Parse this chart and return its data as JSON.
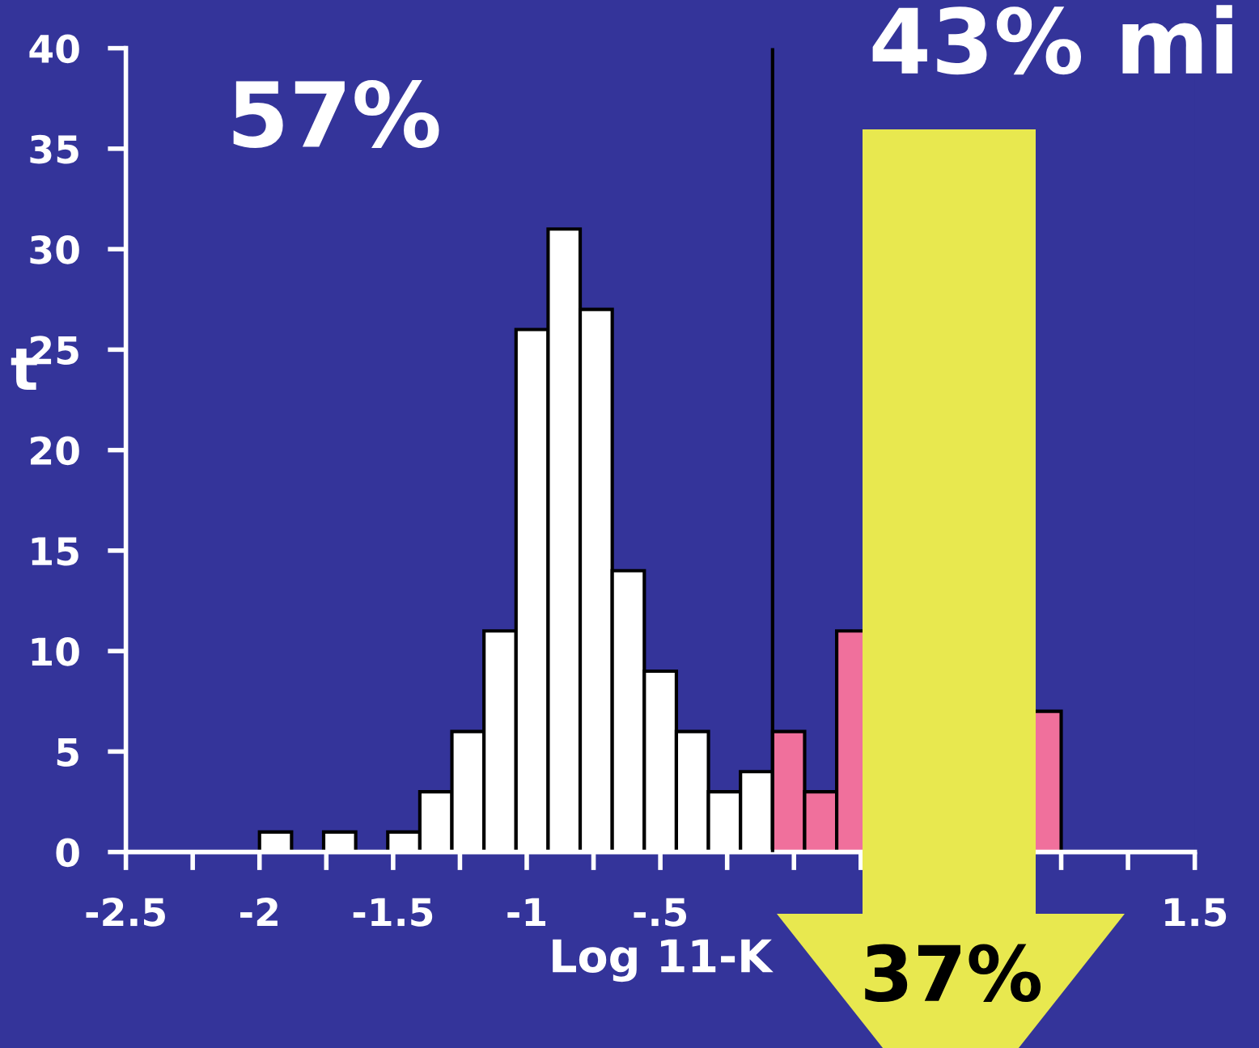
{
  "chart_data": {
    "type": "histogram",
    "xlabel": "Log 11-K",
    "ylabel": "t",
    "bins": [
      -2.0,
      -1.88,
      -1.76,
      -1.64,
      -1.52,
      -1.4,
      -1.28,
      -1.16,
      -1.04,
      -0.92,
      -0.8,
      -0.68,
      -0.56,
      -0.44,
      -0.32,
      -0.2,
      -0.08,
      0.04,
      0.16,
      0.28,
      0.4,
      0.52,
      0.64,
      0.76,
      0.88,
      1.0
    ],
    "values": [
      1,
      0,
      1,
      0,
      1,
      3,
      6,
      11,
      26,
      31,
      27,
      14,
      9,
      6,
      3,
      4,
      6,
      3,
      11,
      null,
      null,
      null,
      null,
      null,
      7
    ],
    "colors": [
      "#ffffff",
      "#ffffff",
      "#ffffff",
      "#ffffff",
      "#ffffff",
      "#ffffff",
      "#ffffff",
      "#ffffff",
      "#ffffff",
      "#ffffff",
      "#ffffff",
      "#ffffff",
      "#ffffff",
      "#ffffff",
      "#ffffff",
      "#ffffff",
      "#f0709c",
      "#f0709c",
      "#f0709c",
      "#f0709c",
      "#f0709c",
      "#f0709c",
      "#f0709c",
      "#f0709c",
      "#f0709c"
    ],
    "xlim": [
      -2.5,
      1.5
    ],
    "ylim": [
      0,
      40
    ],
    "xticks": [
      {
        "value": -2.5,
        "label": "-2.5"
      },
      {
        "value": -2.25,
        "label": null
      },
      {
        "value": -2,
        "label": "-2"
      },
      {
        "value": -1.75,
        "label": null
      },
      {
        "value": -1.5,
        "label": "-1.5"
      },
      {
        "value": -1.25,
        "label": null
      },
      {
        "value": -1,
        "label": "-1"
      },
      {
        "value": -0.75,
        "label": null
      },
      {
        "value": -0.5,
        "label": "-.5"
      },
      {
        "value": -0.25,
        "label": null
      },
      {
        "value": 0,
        "label": null
      },
      {
        "value": 0.25,
        "label": null
      },
      {
        "value": 0.5,
        "label": null
      },
      {
        "value": 0.75,
        "label": null
      },
      {
        "value": 1,
        "label": null
      },
      {
        "value": 1.25,
        "label": null
      },
      {
        "value": 1.5,
        "label": "1.5"
      }
    ],
    "yticks": [
      0,
      5,
      10,
      15,
      20,
      25,
      30,
      35,
      40
    ],
    "ref_lines": [
      {
        "axis": "x",
        "value": -0.08,
        "color": "#000000"
      }
    ],
    "annotations": [
      "57%",
      "43% mi",
      "37%"
    ],
    "grid": false
  }
}
